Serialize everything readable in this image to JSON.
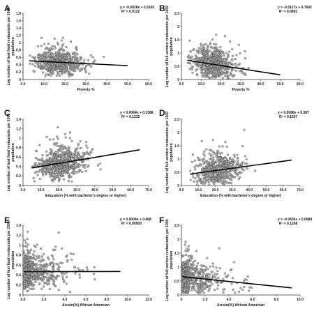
{
  "chart_data": [
    {
      "type": "scatter",
      "panel_label": "A",
      "xlabel": "Poverty %",
      "ylabel": "Log number of fast food restaurants per 1000 population",
      "equation": "y = -0.0028x + 0.5165",
      "r2": "R² = 0.0122",
      "xlim": [
        0,
        60
      ],
      "ylim": [
        0,
        1.8
      ],
      "xticks": [
        "0.0",
        "10.0",
        "20.0",
        "30.0",
        "40.0",
        "50.0",
        "60.0"
      ],
      "yticks": [
        "0",
        "0.2",
        "0.4",
        "0.6",
        "0.8",
        "1",
        "1.2",
        "1.4",
        "1.6",
        "1.8"
      ],
      "trend": {
        "slope": -0.0028,
        "intercept": 0.5165,
        "x_range": [
          3,
          50
        ]
      },
      "cloud": {
        "x_center": 16,
        "x_spread": 7,
        "x_min": 3,
        "x_max": 50,
        "y_spread": 0.16,
        "y_min": 0.02,
        "y_max": 1.6,
        "n": 620,
        "seed": 11,
        "skew": true
      }
    },
    {
      "type": "scatter",
      "panel_label": "B",
      "xlabel": "Poverty %",
      "ylabel": "Log number of full-service restaurants per 1000 population",
      "equation": "y = -0.0117x + 0.7602",
      "r2": "R² = 0.0891",
      "xlim": [
        0,
        60
      ],
      "ylim": [
        0,
        2.5
      ],
      "xticks": [
        "0.0",
        "10.0",
        "20.0",
        "30.0",
        "40.0",
        "50.0",
        "60.0"
      ],
      "yticks": [
        "0",
        "0.5",
        "1",
        "1.5",
        "2",
        "2.5"
      ],
      "trend": {
        "slope": -0.0117,
        "intercept": 0.7602,
        "x_range": [
          3,
          50
        ]
      },
      "cloud": {
        "x_center": 15,
        "x_spread": 7,
        "x_min": 3,
        "x_max": 50,
        "y_spread": 0.3,
        "y_min": 0.02,
        "y_max": 2.1,
        "n": 620,
        "seed": 23,
        "skew": true
      }
    },
    {
      "type": "scatter",
      "panel_label": "C",
      "xlabel": "Education (% with bachelor's degree or higher)",
      "ylabel": "Log number of fast food restaurants per 1000 population",
      "equation": "y = 0.0064x + 0.3388",
      "r2": "R² = 0.1332",
      "xlim": [
        0,
        70
      ],
      "ylim": [
        0,
        1.4
      ],
      "xticks": [
        "0.0",
        "10.0",
        "20.0",
        "30.0",
        "40.0",
        "50.0",
        "60.0",
        "70.0"
      ],
      "yticks": [
        "0",
        "0.2",
        "0.4",
        "0.6",
        "0.8",
        "1",
        "1.2",
        "1.4"
      ],
      "trend": {
        "slope": 0.0064,
        "intercept": 0.3388,
        "x_range": [
          5,
          65
        ]
      },
      "cloud": {
        "x_center": 20,
        "x_spread": 9,
        "x_min": 5,
        "x_max": 65,
        "y_spread": 0.16,
        "y_min": 0.02,
        "y_max": 1.3,
        "n": 650,
        "seed": 37,
        "skew": true
      }
    },
    {
      "type": "scatter",
      "panel_label": "D",
      "xlabel": "Education (% with bachelor's degree or higher)",
      "ylabel": "Log number of full-service restaurants per 1000 population",
      "equation": "y = 0.0088x + 0.387",
      "r2": "R² = 0.1037",
      "xlim": [
        0,
        70
      ],
      "ylim": [
        0,
        2.5
      ],
      "xticks": [
        "0.0",
        "10.0",
        "20.0",
        "30.0",
        "40.0",
        "50.0",
        "60.0",
        "70.0"
      ],
      "yticks": [
        "0",
        "0.5",
        "1",
        "1.5",
        "2",
        "2.5"
      ],
      "trend": {
        "slope": 0.0088,
        "intercept": 0.387,
        "x_range": [
          5,
          65
        ]
      },
      "cloud": {
        "x_center": 20,
        "x_spread": 9,
        "x_min": 5,
        "x_max": 65,
        "y_spread": 0.3,
        "y_min": 0.02,
        "y_max": 2.1,
        "n": 560,
        "seed": 41,
        "skew": true
      }
    },
    {
      "type": "scatter",
      "panel_label": "E",
      "xlabel": "Arcsin(%) African American",
      "ylabel": "Log number of fast food restaurants per 1000 population",
      "equation": "y = 0.0004x + 0.468",
      "r2": "R² = 0.00003",
      "xlim": [
        0,
        12
      ],
      "ylim": [
        0,
        1.4
      ],
      "xticks": [
        "0.0",
        "2.0",
        "4.0",
        "6.0",
        "8.0",
        "10.0",
        "12.0"
      ],
      "yticks": [
        "0",
        "0.2",
        "0.4",
        "0.6",
        "0.8",
        "1",
        "1.2",
        "1.4"
      ],
      "trend": {
        "slope": 0.0004,
        "intercept": 0.468,
        "x_range": [
          0.1,
          9.3
        ]
      },
      "cloud": {
        "x_center": 0.4,
        "x_spread": 3,
        "x_min": 0.05,
        "x_max": 9.3,
        "y_spread": 0.16,
        "y_min": 0.02,
        "y_max": 1.32,
        "n": 680,
        "seed": 53,
        "skew": false,
        "exp": true
      }
    },
    {
      "type": "scatter",
      "panel_label": "F",
      "xlabel": "Arcsin(%) African American",
      "ylabel": "Log number of full-service restaurants per 1000 population",
      "equation": "y = -0.0435x + 0.6584",
      "r2": "R² = 0.1268",
      "xlim": [
        0,
        10
      ],
      "ylim": [
        0,
        2.5
      ],
      "xticks": [
        "0",
        "2.0",
        "4.0",
        "6.0",
        "8.0",
        "10.0"
      ],
      "yticks": [
        "0",
        "0.5",
        "1",
        "1.5",
        "2",
        "2.5"
      ],
      "trend": {
        "slope": -0.0435,
        "intercept": 0.6584,
        "x_range": [
          0.1,
          9.3
        ]
      },
      "cloud": {
        "x_center": 0.4,
        "x_spread": 2.6,
        "x_min": 0.05,
        "x_max": 9.3,
        "y_spread": 0.28,
        "y_min": 0.02,
        "y_max": 2.0,
        "n": 680,
        "seed": 67,
        "skew": false,
        "exp": true
      }
    }
  ]
}
